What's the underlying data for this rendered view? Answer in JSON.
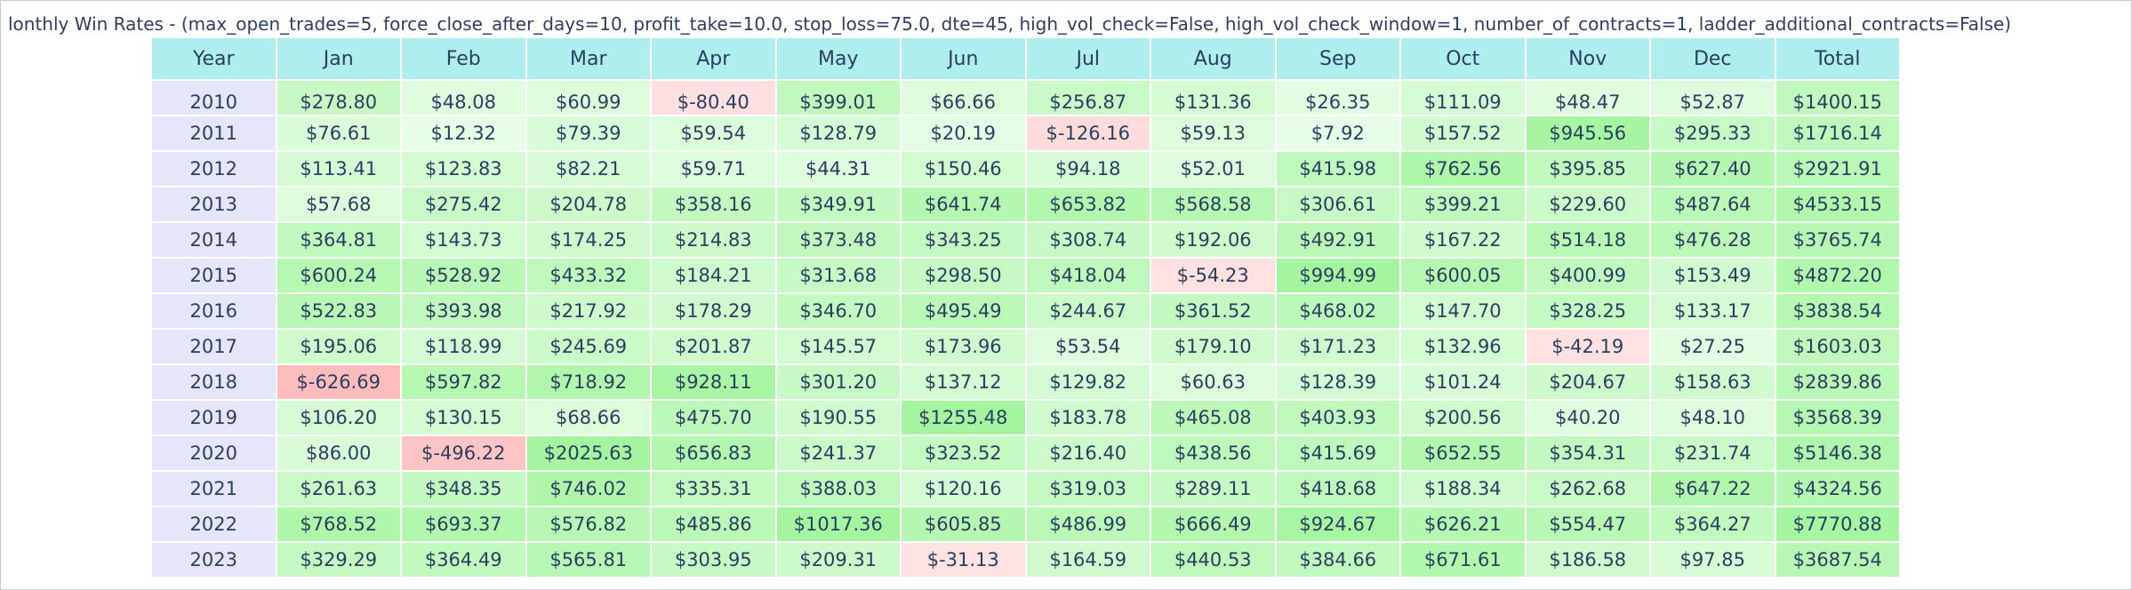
{
  "title": "lonthly Win Rates - (max_open_trades=5, force_close_after_days=10, profit_take=10.0, stop_loss=75.0, dte=45, high_vol_check=False, high_vol_check_window=1, number_of_contracts=1, ladder_additional_contracts=False)",
  "colors": {
    "header": "#afeeee",
    "year_col": "#e6e6fa",
    "neg_light": "#ffe4e4",
    "neg_strong": "#ffbcbc",
    "pos_light": "#effeef",
    "pos_strong": "#a5f5a0"
  },
  "chart_data": {
    "type": "table",
    "columns": [
      "Year",
      "Jan",
      "Feb",
      "Mar",
      "Apr",
      "May",
      "Jun",
      "Jul",
      "Aug",
      "Sep",
      "Oct",
      "Nov",
      "Dec",
      "Total"
    ],
    "rows": [
      [
        "2010",
        "$278.80",
        "$48.08",
        "$60.99",
        "$-80.40",
        "$399.01",
        "$66.66",
        "$256.87",
        "$131.36",
        "$26.35",
        "$111.09",
        "$48.47",
        "$52.87",
        "$1400.15"
      ],
      [
        "2011",
        "$76.61",
        "$12.32",
        "$79.39",
        "$59.54",
        "$128.79",
        "$20.19",
        "$-126.16",
        "$59.13",
        "$7.92",
        "$157.52",
        "$945.56",
        "$295.33",
        "$1716.14"
      ],
      [
        "2012",
        "$113.41",
        "$123.83",
        "$82.21",
        "$59.71",
        "$44.31",
        "$150.46",
        "$94.18",
        "$52.01",
        "$415.98",
        "$762.56",
        "$395.85",
        "$627.40",
        "$2921.91"
      ],
      [
        "2013",
        "$57.68",
        "$275.42",
        "$204.78",
        "$358.16",
        "$349.91",
        "$641.74",
        "$653.82",
        "$568.58",
        "$306.61",
        "$399.21",
        "$229.60",
        "$487.64",
        "$4533.15"
      ],
      [
        "2014",
        "$364.81",
        "$143.73",
        "$174.25",
        "$214.83",
        "$373.48",
        "$343.25",
        "$308.74",
        "$192.06",
        "$492.91",
        "$167.22",
        "$514.18",
        "$476.28",
        "$3765.74"
      ],
      [
        "2015",
        "$600.24",
        "$528.92",
        "$433.32",
        "$184.21",
        "$313.68",
        "$298.50",
        "$418.04",
        "$-54.23",
        "$994.99",
        "$600.05",
        "$400.99",
        "$153.49",
        "$4872.20"
      ],
      [
        "2016",
        "$522.83",
        "$393.98",
        "$217.92",
        "$178.29",
        "$346.70",
        "$495.49",
        "$244.67",
        "$361.52",
        "$468.02",
        "$147.70",
        "$328.25",
        "$133.17",
        "$3838.54"
      ],
      [
        "2017",
        "$195.06",
        "$118.99",
        "$245.69",
        "$201.87",
        "$145.57",
        "$173.96",
        "$53.54",
        "$179.10",
        "$171.23",
        "$132.96",
        "$-42.19",
        "$27.25",
        "$1603.03"
      ],
      [
        "2018",
        "$-626.69",
        "$597.82",
        "$718.92",
        "$928.11",
        "$301.20",
        "$137.12",
        "$129.82",
        "$60.63",
        "$128.39",
        "$101.24",
        "$204.67",
        "$158.63",
        "$2839.86"
      ],
      [
        "2019",
        "$106.20",
        "$130.15",
        "$68.66",
        "$475.70",
        "$190.55",
        "$1255.48",
        "$183.78",
        "$465.08",
        "$403.93",
        "$200.56",
        "$40.20",
        "$48.10",
        "$3568.39"
      ],
      [
        "2020",
        "$86.00",
        "$-496.22",
        "$2025.63",
        "$656.83",
        "$241.37",
        "$323.52",
        "$216.40",
        "$438.56",
        "$415.69",
        "$652.55",
        "$354.31",
        "$231.74",
        "$5146.38"
      ],
      [
        "2021",
        "$261.63",
        "$348.35",
        "$746.02",
        "$335.31",
        "$388.03",
        "$120.16",
        "$319.03",
        "$289.11",
        "$418.68",
        "$188.34",
        "$262.68",
        "$647.22",
        "$4324.56"
      ],
      [
        "2022",
        "$768.52",
        "$693.37",
        "$576.82",
        "$485.86",
        "$1017.36",
        "$605.85",
        "$486.99",
        "$666.49",
        "$924.67",
        "$626.21",
        "$554.47",
        "$364.27",
        "$7770.88"
      ],
      [
        "2023",
        "$329.29",
        "$364.49",
        "$565.81",
        "$303.95",
        "$209.31",
        "$-31.13",
        "$164.59",
        "$440.53",
        "$384.66",
        "$671.61",
        "$186.58",
        "$97.85",
        "$3687.54"
      ]
    ]
  }
}
